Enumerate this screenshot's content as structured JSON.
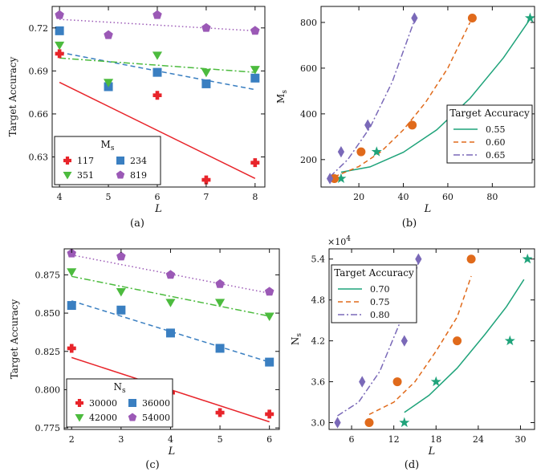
{
  "chart_data": [
    {
      "type": "scatter",
      "caption": "(a)",
      "xlabel": "L",
      "ylabel": "Target Accuracy",
      "xlim": [
        3.85,
        8.2
      ],
      "ylim": [
        0.609,
        0.735
      ],
      "xticks": [
        4,
        5,
        6,
        7,
        8
      ],
      "yticks": [
        0.63,
        0.66,
        0.69,
        0.72
      ],
      "ytick_labels": [
        "0.63",
        "0.66",
        "0.69",
        "0.72"
      ],
      "grid": false,
      "legend": {
        "title": "M",
        "title_sub": "s",
        "placement": "bottom-left",
        "columns": 2
      },
      "series": [
        {
          "name": "117",
          "color": "#e8242a",
          "marker": "plus",
          "line": "solid",
          "x": [
            4,
            6,
            7,
            8
          ],
          "y": [
            0.702,
            0.673,
            0.614,
            0.626
          ],
          "fit": {
            "x": [
              4,
              8
            ],
            "y": [
              0.682,
              0.615
            ]
          }
        },
        {
          "name": "234",
          "color": "#3a7fc1",
          "marker": "square",
          "line": "dashed",
          "x": [
            4,
            5,
            6,
            7,
            8
          ],
          "y": [
            0.718,
            0.679,
            0.689,
            0.681,
            0.685
          ],
          "fit": {
            "x": [
              4,
              8
            ],
            "y": [
              0.703,
              0.677
            ]
          }
        },
        {
          "name": "351",
          "color": "#4cbb3e",
          "marker": "triangle",
          "line": "dashdot",
          "x": [
            4,
            5,
            6,
            7,
            8
          ],
          "y": [
            0.708,
            0.682,
            0.701,
            0.689,
            0.691
          ],
          "fit": {
            "x": [
              4,
              8
            ],
            "y": [
              0.699,
              0.689
            ]
          }
        },
        {
          "name": "819",
          "color": "#9b59b6",
          "marker": "pentagon",
          "line": "dotted",
          "x": [
            4,
            5,
            6,
            7,
            8
          ],
          "y": [
            0.729,
            0.715,
            0.729,
            0.72,
            0.718
          ],
          "fit": {
            "x": [
              4,
              8
            ],
            "y": [
              0.726,
              0.718
            ]
          }
        }
      ]
    },
    {
      "type": "scatter",
      "caption": "(b)",
      "xlabel": "L",
      "ylabel": "M",
      "ylabel_sub": "s",
      "xlim": [
        3,
        99
      ],
      "ylim": [
        80,
        870
      ],
      "xticks": [
        20,
        40,
        60,
        80,
        100
      ],
      "yticks": [
        200,
        400,
        600,
        800
      ],
      "ytick_labels": [
        "200",
        "400",
        "600",
        "800"
      ],
      "grid": false,
      "legend": {
        "title": "Target Accuracy",
        "placement": "bottom-right",
        "columns": 1
      },
      "series": [
        {
          "name": "0.55",
          "color": "#1fa37a",
          "marker": "star",
          "line": "solid",
          "x": [
            12,
            28,
            97
          ],
          "y": [
            117,
            234,
            819
          ],
          "fit": {
            "x": [
              12,
              25,
              40,
              55,
              70,
              85,
              97
            ],
            "y": [
              145,
              168,
              232,
              330,
              468,
              645,
              815
            ]
          }
        },
        {
          "name": "0.60",
          "color": "#e06a1b",
          "marker": "circle",
          "line": "dashed",
          "x": [
            9,
            21,
            44,
            71
          ],
          "y": [
            117,
            234,
            351,
            819
          ],
          "fit": {
            "x": [
              9,
              20,
              30,
              40,
              50,
              60,
              70
            ],
            "y": [
              125,
              170,
              235,
              330,
              450,
              600,
              800
            ]
          }
        },
        {
          "name": "0.65",
          "color": "#7a69b8",
          "marker": "diamond",
          "line": "dashdot",
          "x": [
            7,
            12,
            24,
            45
          ],
          "y": [
            117,
            234,
            351,
            819
          ],
          "fit": {
            "x": [
              7,
              15,
              25,
              35,
              45
            ],
            "y": [
              125,
              200,
              340,
              540,
              810
            ]
          }
        }
      ]
    },
    {
      "type": "scatter",
      "caption": "(c)",
      "xlabel": "L",
      "ylabel": "Target Accuracy",
      "xlim": [
        1.85,
        6.2
      ],
      "ylim": [
        0.774,
        0.892
      ],
      "xticks": [
        2,
        3,
        4,
        5,
        6
      ],
      "yticks": [
        0.775,
        0.8,
        0.825,
        0.85,
        0.875
      ],
      "ytick_labels": [
        "0.775",
        "0.800",
        "0.825",
        "0.850",
        "0.875"
      ],
      "grid": false,
      "legend": {
        "title": "N",
        "title_sub": "s",
        "placement": "bottom-left",
        "columns": 2
      },
      "series": [
        {
          "name": "30000",
          "color": "#e8242a",
          "marker": "plus",
          "line": "solid",
          "x": [
            2,
            3,
            4,
            5,
            6
          ],
          "y": [
            0.827,
            0.804,
            0.798,
            0.785,
            0.784
          ],
          "fit": {
            "x": [
              2,
              6
            ],
            "y": [
              0.821,
              0.779
            ]
          }
        },
        {
          "name": "36000",
          "color": "#3a7fc1",
          "marker": "square",
          "line": "dashed",
          "x": [
            2,
            3,
            4,
            5,
            6
          ],
          "y": [
            0.855,
            0.852,
            0.837,
            0.827,
            0.818
          ],
          "fit": {
            "x": [
              2,
              6
            ],
            "y": [
              0.858,
              0.818
            ]
          }
        },
        {
          "name": "42000",
          "color": "#4cbb3e",
          "marker": "triangle",
          "line": "dashdot",
          "x": [
            2,
            3,
            4,
            5,
            6
          ],
          "y": [
            0.877,
            0.864,
            0.857,
            0.857,
            0.848
          ],
          "fit": {
            "x": [
              2,
              6
            ],
            "y": [
              0.874,
              0.848
            ]
          }
        },
        {
          "name": "54000",
          "color": "#9b59b6",
          "marker": "pentagon",
          "line": "dotted",
          "x": [
            2,
            3,
            4,
            5,
            6
          ],
          "y": [
            0.889,
            0.887,
            0.875,
            0.869,
            0.864
          ],
          "fit": {
            "x": [
              2,
              6
            ],
            "y": [
              0.888,
              0.863
            ]
          }
        }
      ]
    },
    {
      "type": "scatter",
      "caption": "(d)",
      "xlabel": "L",
      "ylabel": "N",
      "ylabel_sub": "s",
      "exponent_label": "×10",
      "exponent_power": "4",
      "xlim": [
        2.8,
        32
      ],
      "ylim": [
        2.9,
        5.55
      ],
      "xticks": [
        6,
        12,
        18,
        24,
        30
      ],
      "yticks": [
        3.0,
        3.6,
        4.2,
        4.8,
        5.4
      ],
      "ytick_labels": [
        "3.0",
        "3.6",
        "4.2",
        "4.8",
        "5.4"
      ],
      "grid": false,
      "legend": {
        "title": "Target Accuracy",
        "placement": "top-left",
        "columns": 1
      },
      "series": [
        {
          "name": "0.70",
          "color": "#1fa37a",
          "marker": "star",
          "line": "solid",
          "x": [
            13.5,
            18,
            28.5,
            31
          ],
          "y": [
            3.0,
            3.6,
            4.2,
            5.4
          ],
          "fit": {
            "x": [
              13.5,
              17,
              21,
              25,
              28,
              30.5
            ],
            "y": [
              3.15,
              3.4,
              3.8,
              4.3,
              4.7,
              5.1
            ]
          }
        },
        {
          "name": "0.75",
          "color": "#e06a1b",
          "marker": "circle",
          "line": "dashed",
          "x": [
            8.5,
            12.5,
            21,
            23
          ],
          "y": [
            3.0,
            3.6,
            4.2,
            5.4
          ],
          "fit": {
            "x": [
              8.5,
              12,
              15,
              18,
              21,
              23
            ],
            "y": [
              3.12,
              3.3,
              3.6,
              4.05,
              4.55,
              5.15
            ]
          }
        },
        {
          "name": "0.80",
          "color": "#7a69b8",
          "marker": "diamond",
          "line": "dashdot",
          "x": [
            4,
            7.5,
            13.5,
            15.5
          ],
          "y": [
            3.0,
            3.6,
            4.2,
            5.4
          ],
          "fit": {
            "x": [
              4,
              7,
              10,
              13,
              15.5
            ],
            "y": [
              3.1,
              3.3,
              3.75,
              4.5,
              5.35
            ]
          }
        }
      ]
    }
  ]
}
